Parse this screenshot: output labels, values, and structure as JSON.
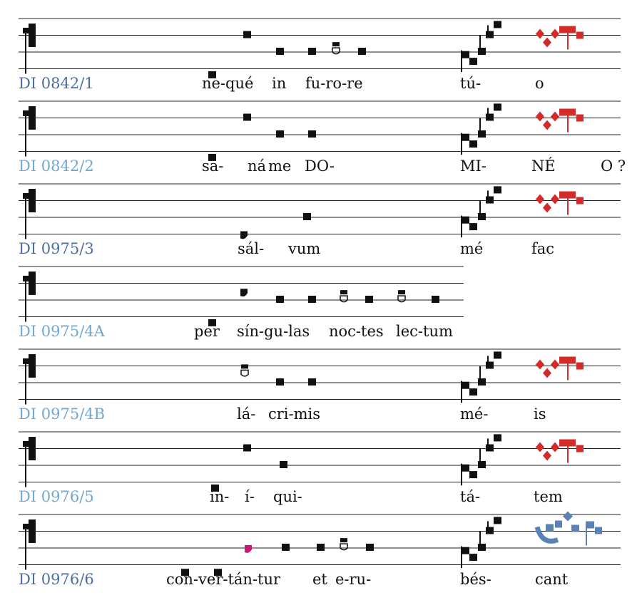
{
  "colors": {
    "staff": "#222222",
    "note": "#111111",
    "label_dark": "#4a6fa5",
    "label_light": "#6fa8d0",
    "red_neume": "#d42a2a",
    "blue_neume": "#5b82b5",
    "magenta_note": "#d0157a"
  },
  "systems": [
    {
      "label": "DI 0842/1",
      "label_tone": "dark",
      "syllables": [
        "ne-qué",
        "in",
        "fu-ro-re",
        "tú-",
        "o"
      ],
      "end_neume": "red"
    },
    {
      "label": "DI 0842/2",
      "label_tone": "light",
      "syllables": [
        "sa-",
        "ná",
        "me",
        "DO-",
        "MI-",
        "NÉ",
        "O ?"
      ],
      "end_neume": "red"
    },
    {
      "label": "DI 0975/3",
      "label_tone": "dark",
      "syllables": [
        "sál-",
        "vum",
        "mé",
        "fac"
      ],
      "end_neume": "red"
    },
    {
      "label": "DI 0975/4A",
      "label_tone": "light",
      "syllables": [
        "per",
        "sín-gu-las",
        "noc-tes",
        "lec-tum"
      ],
      "end_neume": "none"
    },
    {
      "label": "DI 0975/4B",
      "label_tone": "light",
      "syllables": [
        "lá-",
        "cri-mis",
        "mé-",
        "is"
      ],
      "end_neume": "red"
    },
    {
      "label": "DI 0976/5",
      "label_tone": "light",
      "syllables": [
        "in-",
        "í-",
        "qui-",
        "tá-",
        "tem"
      ],
      "end_neume": "red"
    },
    {
      "label": "DI 0976/6",
      "label_tone": "dark",
      "syllables": [
        "con-ver-tán-tur",
        "et",
        "e-ru-",
        "bés-",
        "cant"
      ],
      "end_neume": "blue"
    }
  ]
}
